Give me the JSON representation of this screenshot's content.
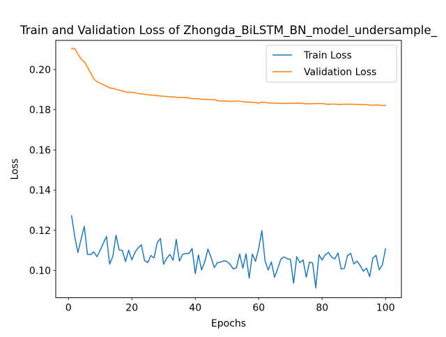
{
  "chart_data": {
    "type": "line",
    "title": "Train and Validation Loss of Zhongda_BiLSTM_BN_model_undersample_",
    "xlabel": "Epochs",
    "ylabel": "Loss",
    "xlim": [
      -4,
      105
    ],
    "ylim": [
      0.0865,
      0.2145
    ],
    "xticks": [
      0,
      20,
      40,
      60,
      80,
      100
    ],
    "yticks": [
      0.1,
      0.12,
      0.14,
      0.16,
      0.18,
      0.2
    ],
    "ytick_labels": [
      "0.10",
      "0.12",
      "0.14",
      "0.16",
      "0.18",
      "0.20"
    ],
    "grid": false,
    "legend": {
      "position": "top-right"
    },
    "x": [
      1,
      2,
      3,
      4,
      5,
      6,
      7,
      8,
      9,
      10,
      11,
      12,
      13,
      14,
      15,
      16,
      17,
      18,
      19,
      20,
      21,
      22,
      23,
      24,
      25,
      26,
      27,
      28,
      29,
      30,
      31,
      32,
      33,
      34,
      35,
      36,
      37,
      38,
      39,
      40,
      41,
      42,
      43,
      44,
      45,
      46,
      47,
      48,
      49,
      50,
      51,
      52,
      53,
      54,
      55,
      56,
      57,
      58,
      59,
      60,
      61,
      62,
      63,
      64,
      65,
      66,
      67,
      68,
      69,
      70,
      71,
      72,
      73,
      74,
      75,
      76,
      77,
      78,
      79,
      80,
      81,
      82,
      83,
      84,
      85,
      86,
      87,
      88,
      89,
      90,
      91,
      92,
      93,
      94,
      95,
      96,
      97,
      98,
      99,
      100
    ],
    "series": [
      {
        "name": "Train Loss",
        "color": "#1f77b4",
        "values": [
          0.1273,
          0.1168,
          0.109,
          0.1157,
          0.122,
          0.1081,
          0.108,
          0.1093,
          0.1069,
          0.1101,
          0.1136,
          0.117,
          0.1032,
          0.1071,
          0.1176,
          0.1103,
          0.11,
          0.1045,
          0.1101,
          0.1053,
          0.1091,
          0.1113,
          0.1128,
          0.105,
          0.104,
          0.1075,
          0.1063,
          0.1139,
          0.116,
          0.1032,
          0.1061,
          0.108,
          0.1051,
          0.1155,
          0.1047,
          0.108,
          0.1085,
          0.1085,
          0.111,
          0.0985,
          0.1078,
          0.1003,
          0.1045,
          0.1107,
          0.1065,
          0.1015,
          0.104,
          0.1042,
          0.1049,
          0.1045,
          0.103,
          0.1008,
          0.1015,
          0.1083,
          0.1012,
          0.1083,
          0.0963,
          0.1082,
          0.1046,
          0.111,
          0.1199,
          0.1049,
          0.1003,
          0.1043,
          0.0967,
          0.101,
          0.1057,
          0.1068,
          0.1059,
          0.1056,
          0.0937,
          0.1069,
          0.1039,
          0.1053,
          0.0967,
          0.1042,
          0.1038,
          0.0914,
          0.1079,
          0.1053,
          0.1079,
          0.109,
          0.1067,
          0.1058,
          0.1088,
          0.1008,
          0.1011,
          0.1074,
          0.1086,
          0.1033,
          0.1047,
          0.1025,
          0.0997,
          0.1012,
          0.097,
          0.1062,
          0.1076,
          0.1004,
          0.1029,
          0.1109
        ]
      },
      {
        "name": "Validation Loss",
        "color": "#ff7f0e",
        "values": [
          0.2105,
          0.2104,
          0.2077,
          0.2052,
          0.2039,
          0.2012,
          0.1983,
          0.1953,
          0.194,
          0.1932,
          0.1925,
          0.1917,
          0.1909,
          0.1906,
          0.1902,
          0.1898,
          0.1893,
          0.1889,
          0.1887,
          0.1887,
          0.1885,
          0.188,
          0.1879,
          0.1877,
          0.1875,
          0.1873,
          0.1872,
          0.1871,
          0.1868,
          0.1867,
          0.1866,
          0.1864,
          0.1864,
          0.1862,
          0.1862,
          0.1861,
          0.1861,
          0.1858,
          0.1856,
          0.1855,
          0.1855,
          0.1852,
          0.1852,
          0.1851,
          0.185,
          0.185,
          0.1846,
          0.1843,
          0.1844,
          0.1843,
          0.1842,
          0.1842,
          0.1843,
          0.1843,
          0.184,
          0.1838,
          0.1838,
          0.1837,
          0.1836,
          0.1833,
          0.1838,
          0.1836,
          0.1834,
          0.1833,
          0.1833,
          0.1832,
          0.1832,
          0.1831,
          0.1832,
          0.1832,
          0.1832,
          0.1833,
          0.1832,
          0.1832,
          0.1829,
          0.183,
          0.183,
          0.1831,
          0.1831,
          0.1831,
          0.1829,
          0.1827,
          0.1828,
          0.1828,
          0.1826,
          0.1827,
          0.1828,
          0.1827,
          0.1828,
          0.1827,
          0.1827,
          0.1827,
          0.1825,
          0.1825,
          0.1824,
          0.1822,
          0.1824,
          0.1823,
          0.1821,
          0.1821
        ]
      }
    ]
  }
}
